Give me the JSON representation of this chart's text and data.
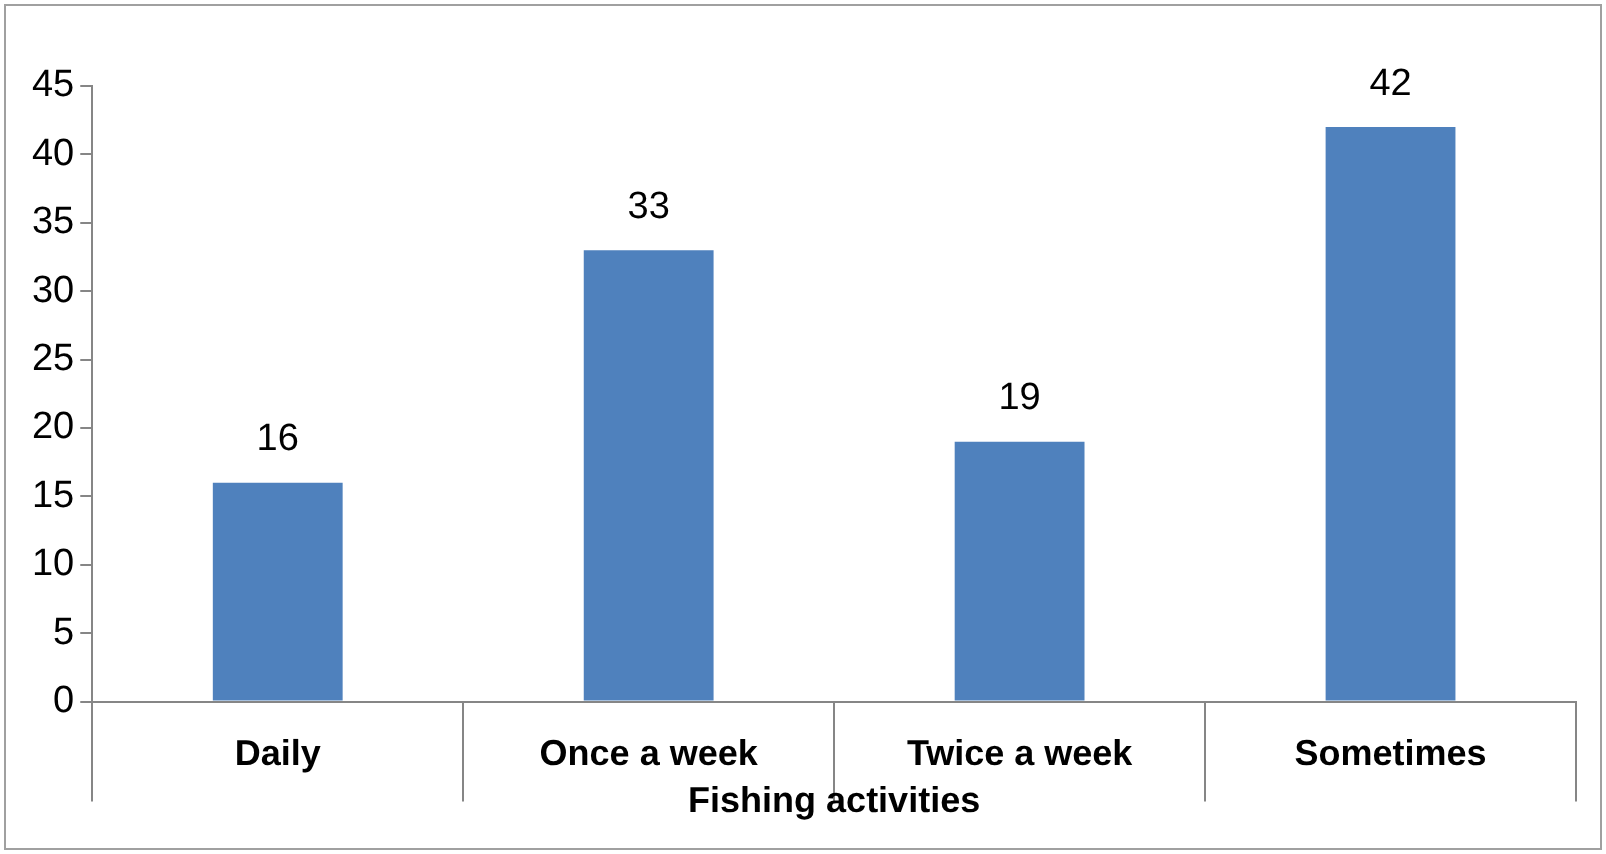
{
  "chart_data": {
    "type": "bar",
    "xlabel": "Fishing activities",
    "categories": [
      "Daily",
      "Once a week",
      "Twice a week",
      "Sometimes"
    ],
    "values": [
      16,
      33,
      19,
      42
    ],
    "color": "#4f81bd",
    "ylim": [
      0,
      45
    ],
    "yticks": [
      0,
      5,
      10,
      15,
      20,
      25,
      30,
      35,
      40,
      45
    ],
    "data_labels": true,
    "grid": false,
    "legend": false
  }
}
